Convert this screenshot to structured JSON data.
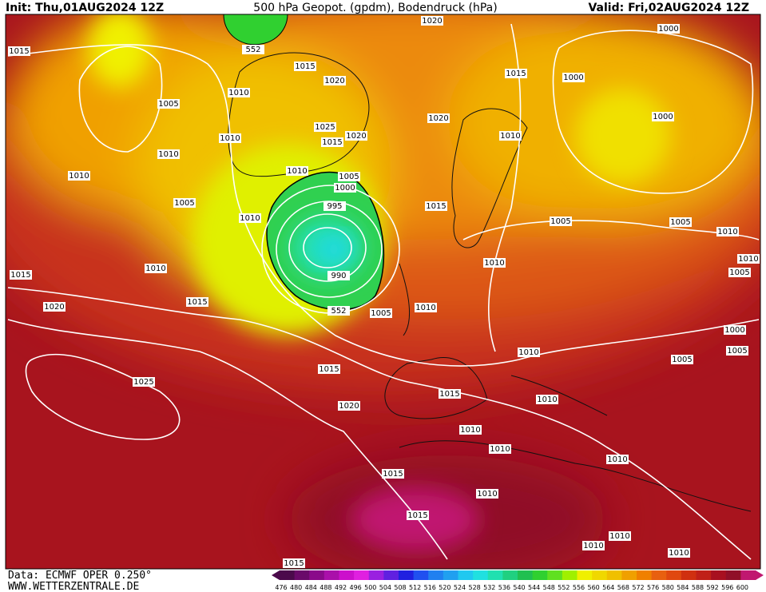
{
  "header": {
    "init": "Init: Thu,01AUG2024 12Z",
    "title": "500 hPa Geopot. (gpdm), Bodendruck (hPa)",
    "valid": "Valid: Fri,02AUG2024 12Z"
  },
  "footer": {
    "data_source": "Data: ECMWF OPER 0.250°",
    "website": "WWW.WETTERZENTRALE.DE"
  },
  "colorbar": {
    "labels": [
      476,
      480,
      484,
      488,
      492,
      496,
      500,
      504,
      508,
      512,
      516,
      520,
      524,
      528,
      532,
      536,
      540,
      544,
      548,
      552,
      556,
      560,
      564,
      568,
      572,
      576,
      580,
      584,
      588,
      592,
      596,
      600
    ],
    "colors": [
      "#4b0a4b",
      "#6a0a6a",
      "#8a0a8a",
      "#aa10aa",
      "#cc10cc",
      "#e020e0",
      "#9a20e0",
      "#6020e0",
      "#2020e0",
      "#2050f0",
      "#2080f0",
      "#20a0f0",
      "#20c8f0",
      "#20e0e0",
      "#20e0b0",
      "#20d080",
      "#20c050",
      "#30d030",
      "#60e020",
      "#a0f000",
      "#f0f000",
      "#f0d800",
      "#f0c000",
      "#f0a000",
      "#f08000",
      "#e86010",
      "#e04810",
      "#d03010",
      "#c02018",
      "#a81020",
      "#901028",
      "#c01870"
    ]
  },
  "isobar_labels": [
    1015,
    1005,
    1010,
    1010,
    1005,
    1010,
    1010,
    1015,
    1020,
    1015,
    1025,
    1015,
    1020,
    1015,
    1015,
    1015,
    1010,
    1010,
    1015,
    1020,
    1025,
    1015,
    1020,
    1010,
    1005,
    1000,
    995,
    990,
    1005,
    1010,
    1020,
    1015,
    1010,
    1010,
    1015,
    1000,
    1000,
    1000,
    1005,
    1005,
    1010,
    1010,
    1005,
    1000,
    1005,
    1005,
    1010,
    1010,
    1015,
    1010,
    1010,
    1010,
    1010,
    1010,
    1010,
    1010,
    552,
    552,
    1020
  ]
}
